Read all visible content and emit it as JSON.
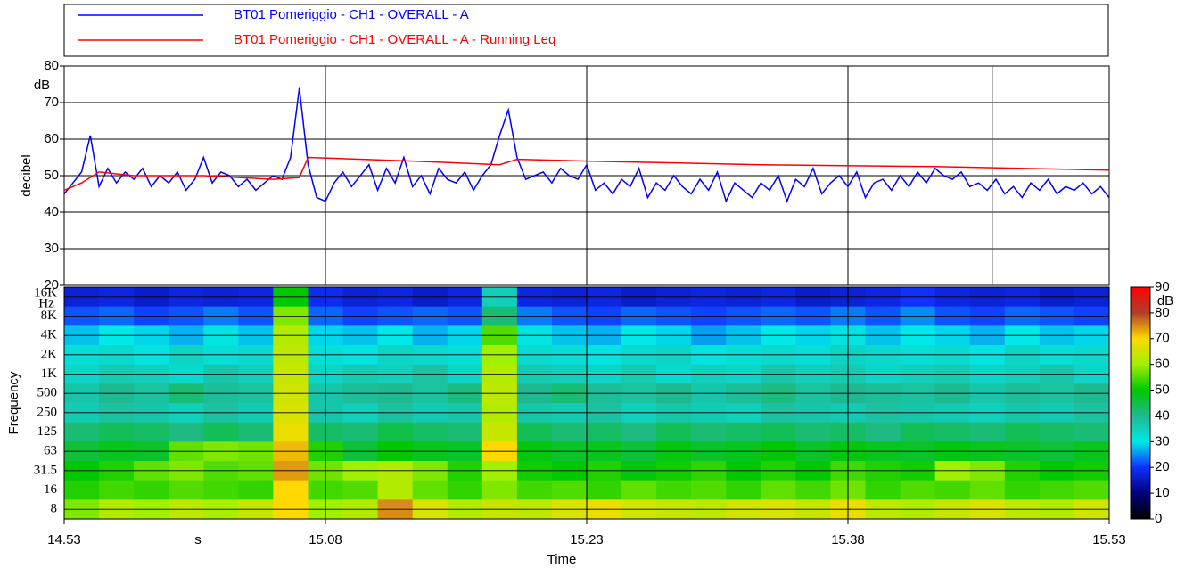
{
  "chart_data": [
    {
      "type": "line",
      "ylabel": "decibel",
      "yunit": "dB",
      "xlim": [
        893,
        953
      ],
      "ylim": [
        20,
        80
      ],
      "yticks": [
        20,
        30,
        40,
        50,
        60,
        70,
        80
      ],
      "grid": true,
      "series": [
        {
          "name": "BT01 Pomeriggio - CH1 - OVERALL - A",
          "color": "#0000ff",
          "x": [
            893,
            893.5,
            894,
            894.5,
            895,
            895.5,
            896,
            896.5,
            897,
            897.5,
            898,
            898.5,
            899,
            899.5,
            900,
            900.5,
            901,
            901.5,
            902,
            902.5,
            903,
            903.5,
            904,
            904.5,
            905,
            905.5,
            906,
            906.5,
            907,
            907.5,
            908,
            908.5,
            909,
            909.5,
            910,
            910.5,
            911,
            911.5,
            912,
            912.5,
            913,
            913.5,
            914,
            914.5,
            915,
            915.5,
            916,
            916.5,
            917,
            917.5,
            918,
            918.5,
            919,
            919.5,
            920,
            920.5,
            921,
            921.5,
            922,
            922.5,
            923,
            923.5,
            924,
            924.5,
            925,
            925.5,
            926,
            926.5,
            927,
            927.5,
            928,
            928.5,
            929,
            929.5,
            930,
            930.5,
            931,
            931.5,
            932,
            932.5,
            933,
            933.5,
            934,
            934.5,
            935,
            935.5,
            936,
            936.5,
            937,
            937.5,
            938,
            938.5,
            939,
            939.5,
            940,
            940.5,
            941,
            941.5,
            942,
            942.5,
            943,
            943.5,
            944,
            944.5,
            945,
            945.5,
            946,
            946.5,
            947,
            947.5,
            948,
            948.5,
            949,
            949.5,
            950,
            950.5,
            951,
            951.5,
            952,
            952.5,
            953
          ],
          "values": [
            45,
            48,
            51,
            61,
            47,
            52,
            48,
            51,
            49,
            52,
            47,
            50,
            48,
            51,
            46,
            49,
            55,
            48,
            51,
            50,
            47,
            49,
            46,
            48,
            50,
            49,
            55,
            74,
            53,
            44,
            43,
            48,
            51,
            47,
            50,
            53,
            46,
            52,
            48,
            55,
            47,
            50,
            45,
            52,
            49,
            48,
            51,
            46,
            50,
            53,
            61,
            68,
            55,
            49,
            50,
            51,
            48,
            52,
            50,
            49,
            53,
            46,
            48,
            45,
            49,
            47,
            52,
            44,
            48,
            46,
            50,
            47,
            45,
            49,
            46,
            51,
            43,
            48,
            46,
            44,
            48,
            46,
            50,
            43,
            49,
            47,
            52,
            45,
            48,
            50,
            47,
            51,
            44,
            48,
            49,
            46,
            50,
            47,
            51,
            48,
            52,
            50,
            49,
            51,
            47,
            48,
            46,
            49,
            45,
            47,
            44,
            48,
            46,
            49,
            45,
            47,
            46,
            48,
            45,
            47,
            44
          ]
        },
        {
          "name": "BT01 Pomeriggio - CH1 - OVERALL - A - Running Leq",
          "color": "#ff0000",
          "x": [
            893,
            894,
            895,
            897,
            901,
            905,
            906.5,
            907,
            913,
            918,
            919,
            923,
            933,
            943,
            953
          ],
          "values": [
            46,
            48,
            51,
            50,
            50,
            49,
            49.5,
            55,
            54,
            53,
            54.5,
            54,
            53,
            52.5,
            51.5
          ]
        }
      ]
    },
    {
      "type": "heatmap",
      "ylabel": "Frequency",
      "yunit": "Hz",
      "xlabel": "Time",
      "xunit": "s",
      "xlim": [
        893,
        953
      ],
      "xticks": [
        {
          "value": 893,
          "label": "14.53"
        },
        {
          "value": 908,
          "label": "15.08"
        },
        {
          "value": 923,
          "label": "15.23"
        },
        {
          "value": 938,
          "label": "15.38"
        },
        {
          "value": 953,
          "label": "15.53"
        }
      ],
      "categories": [
        "16K",
        "8K",
        "4K",
        "2K",
        "1K",
        "500",
        "250",
        "125",
        "63",
        "31.5",
        "16",
        "8"
      ],
      "x": [
        894,
        896,
        898,
        900,
        902,
        904,
        906,
        908,
        910,
        912,
        914,
        916,
        918,
        920,
        922,
        924,
        926,
        928,
        930,
        932,
        934,
        936,
        938,
        940,
        942,
        944,
        946,
        948,
        950,
        952
      ],
      "z": [
        [
          17,
          18,
          16,
          18,
          17,
          18,
          50,
          19,
          17,
          18,
          16,
          18,
          35,
          18,
          17,
          18,
          16,
          17,
          18,
          17,
          18,
          16,
          17,
          18,
          20,
          18,
          17,
          18,
          16,
          17
        ],
        [
          22,
          23,
          21,
          22,
          24,
          22,
          58,
          23,
          21,
          22,
          23,
          22,
          42,
          24,
          22,
          21,
          23,
          22,
          21,
          22,
          23,
          22,
          24,
          22,
          25,
          22,
          21,
          23,
          22,
          21
        ],
        [
          28,
          30,
          29,
          27,
          31,
          28,
          62,
          29,
          28,
          30,
          27,
          29,
          55,
          31,
          28,
          27,
          30,
          29,
          26,
          28,
          30,
          29,
          31,
          28,
          30,
          29,
          27,
          30,
          28,
          29
        ],
        [
          32,
          33,
          31,
          34,
          32,
          33,
          63,
          32,
          31,
          34,
          33,
          32,
          60,
          33,
          32,
          31,
          33,
          34,
          31,
          32,
          33,
          32,
          34,
          33,
          32,
          33,
          31,
          34,
          32,
          33
        ],
        [
          34,
          36,
          35,
          33,
          37,
          35,
          64,
          34,
          36,
          35,
          38,
          34,
          62,
          36,
          35,
          34,
          36,
          33,
          35,
          34,
          37,
          35,
          36,
          34,
          35,
          36,
          34,
          35,
          37,
          34
        ],
        [
          37,
          40,
          38,
          42,
          39,
          38,
          65,
          37,
          39,
          40,
          38,
          41,
          63,
          40,
          42,
          39,
          38,
          40,
          37,
          39,
          41,
          38,
          40,
          39,
          38,
          40,
          37,
          39,
          38,
          40
        ],
        [
          36,
          38,
          37,
          35,
          38,
          36,
          66,
          37,
          35,
          38,
          36,
          37,
          62,
          37,
          36,
          38,
          35,
          37,
          36,
          35,
          38,
          37,
          36,
          38,
          37,
          36,
          35,
          37,
          36,
          38
        ],
        [
          42,
          44,
          43,
          41,
          44,
          42,
          68,
          43,
          42,
          45,
          43,
          42,
          64,
          44,
          42,
          43,
          41,
          44,
          42,
          43,
          44,
          42,
          43,
          41,
          44,
          43,
          42,
          44,
          43,
          42
        ],
        [
          46,
          48,
          47,
          56,
          58,
          57,
          72,
          52,
          46,
          50,
          48,
          47,
          70,
          49,
          47,
          48,
          46,
          49,
          47,
          48,
          50,
          47,
          49,
          48,
          47,
          49,
          48,
          47,
          46,
          48
        ],
        [
          50,
          52,
          56,
          58,
          55,
          56,
          74,
          57,
          60,
          62,
          58,
          52,
          60,
          51,
          50,
          52,
          49,
          51,
          53,
          50,
          52,
          50,
          54,
          52,
          51,
          60,
          58,
          52,
          50,
          51
        ],
        [
          52,
          54,
          53,
          55,
          54,
          53,
          70,
          54,
          55,
          62,
          56,
          53,
          58,
          54,
          55,
          53,
          56,
          54,
          55,
          53,
          56,
          54,
          57,
          53,
          55,
          54,
          56,
          53,
          54,
          55
        ],
        [
          58,
          62,
          60,
          63,
          61,
          64,
          70,
          60,
          62,
          75,
          66,
          62,
          64,
          63,
          66,
          68,
          65,
          64,
          63,
          65,
          66,
          64,
          68,
          63,
          62,
          64,
          66,
          63,
          62,
          65
        ]
      ],
      "colorbar": {
        "unit": "dB",
        "lim": [
          0,
          90
        ],
        "ticks": [
          0,
          10,
          20,
          30,
          40,
          50,
          60,
          70,
          80,
          90
        ],
        "colors": [
          "#000000",
          "#00007a",
          "#1030ff",
          "#00e8e8",
          "#20b890",
          "#00c800",
          "#a0f000",
          "#ffd800",
          "#b04028",
          "#ff0000"
        ]
      }
    }
  ]
}
